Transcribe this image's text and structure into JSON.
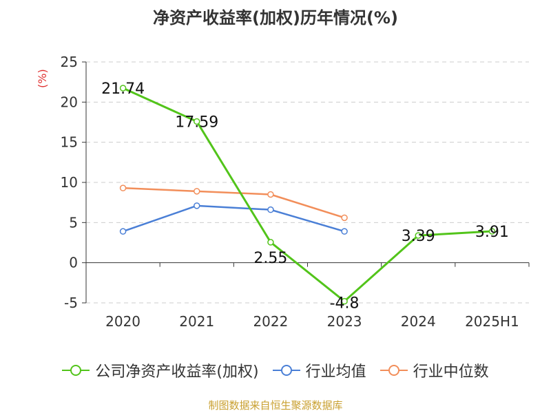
{
  "title": "净资产收益率(加权)历年情况(%)",
  "source": "制图数据来自恒生聚源数据库",
  "colors": {
    "series_company": "#52c41a",
    "series_industry_avg": "#4a7fd6",
    "series_industry_median": "#f28e5a",
    "grid": "#cccccc",
    "axis": "#333333",
    "unit": "#e03030",
    "source": "#c9a030"
  },
  "chart_data": {
    "type": "line",
    "title": "净资产收益率(加权)历年情况(%)",
    "ylabel": "(%)",
    "xlabel": "",
    "categories": [
      "2020",
      "2021",
      "2022",
      "2023",
      "2024",
      "2025H1"
    ],
    "ylim": [
      -5,
      25
    ],
    "yticks": [
      "25",
      "20",
      "15",
      "10",
      "5",
      "0",
      "-5"
    ],
    "ytick_values": [
      25,
      20,
      15,
      10,
      5,
      0,
      -5
    ],
    "grid": true,
    "legend_position": "bottom",
    "series": [
      {
        "name": "公司净资产收益率(加权)",
        "values": [
          21.74,
          17.59,
          2.55,
          -4.8,
          3.39,
          3.91
        ],
        "labels": [
          "21.74",
          "17.59",
          "2.55",
          "-4.8",
          "3.39",
          "3.91"
        ]
      },
      {
        "name": "行业均值",
        "values": [
          3.9,
          7.1,
          6.6,
          3.9,
          null,
          null
        ]
      },
      {
        "name": "行业中位数",
        "values": [
          9.3,
          8.9,
          8.5,
          5.6,
          null,
          null
        ]
      }
    ]
  }
}
